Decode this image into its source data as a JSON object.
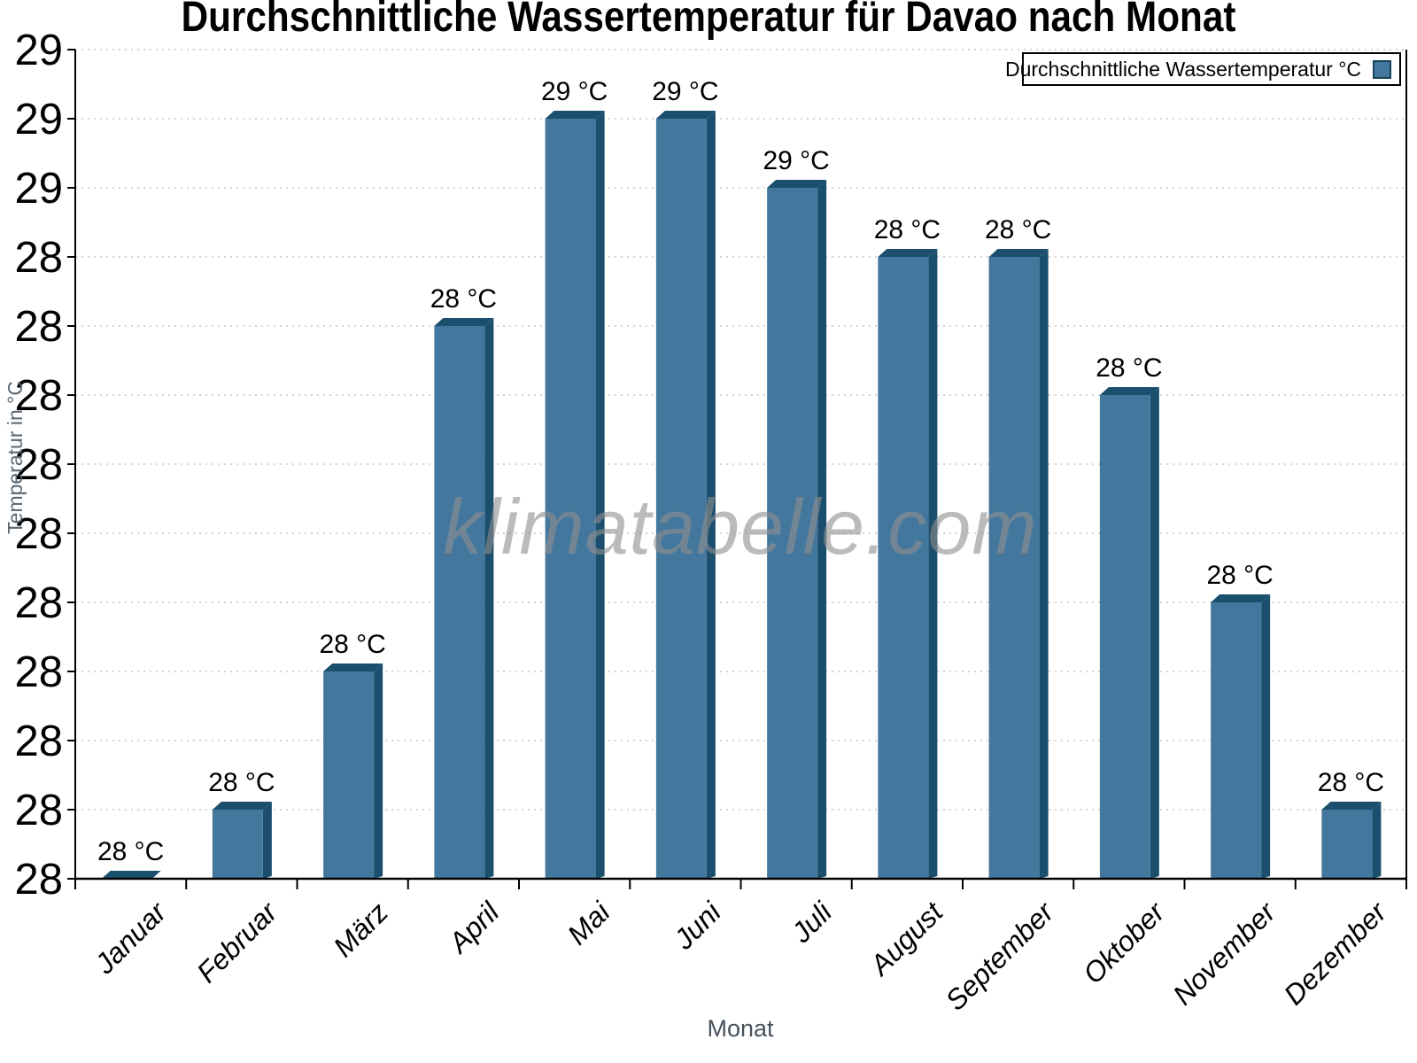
{
  "title": "Durchschnittliche Wassertemperatur für Davao nach Monat",
  "legend": {
    "label": "Durchschnittliche Wassertemperatur °C"
  },
  "watermark": "klimatabelle.com",
  "chart_data": {
    "type": "bar",
    "title": "Durchschnittliche Wassertemperatur für Davao nach Monat",
    "xlabel": "Monat",
    "ylabel": "Temperatur in °C",
    "categories": [
      "Januar",
      "Februar",
      "März",
      "April",
      "Mai",
      "Juni",
      "Juli",
      "August",
      "September",
      "Oktober",
      "November",
      "Dezember"
    ],
    "values": [
      27.5,
      27.6,
      27.8,
      28.3,
      28.6,
      28.6,
      28.5,
      28.4,
      28.4,
      28.2,
      27.9,
      27.6
    ],
    "bar_labels": [
      "28 °C",
      "28 °C",
      "28 °C",
      "28 °C",
      "29 °C",
      "29 °C",
      "29 °C",
      "28 °C",
      "28 °C",
      "28 °C",
      "28 °C",
      "28 °C"
    ],
    "unit": "°C",
    "ylim": [
      27.5,
      28.7
    ],
    "y_tick_step": 0.1,
    "y_tick_labels": [
      "29",
      "29",
      "29",
      "28",
      "28",
      "28",
      "28",
      "28",
      "28",
      "28",
      "28",
      "28",
      "28"
    ],
    "grid": "horizontal-dotted",
    "legend_position": "top-right",
    "bar_style": "3d-extruded",
    "colors": {
      "bar_face": "#44779d",
      "bar_edge": "#1c4f6e",
      "gridline": "#c6c6c6",
      "axis": "#000000",
      "axis_title": "#5a6670",
      "watermark": "#8f8f8f",
      "label": "#000000"
    }
  }
}
